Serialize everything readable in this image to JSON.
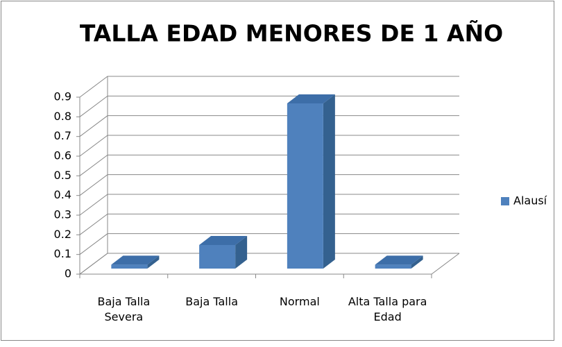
{
  "chart_data": {
    "type": "bar",
    "title": "TALLA EDAD MENORES DE 1 AÑO",
    "categories": [
      "Baja Talla Severa",
      "Baja Talla",
      "Normal",
      "Alta Talla para Edad"
    ],
    "series": [
      {
        "name": "Alausí",
        "color": "#4f81bd",
        "values": [
          0.02,
          0.12,
          0.84,
          0.02
        ]
      }
    ],
    "ylim": [
      0,
      0.9
    ],
    "yticks": [
      0,
      0.1,
      0.2,
      0.3,
      0.4,
      0.5,
      0.6,
      0.7,
      0.8,
      0.9
    ],
    "grid": true,
    "legend": "right"
  }
}
